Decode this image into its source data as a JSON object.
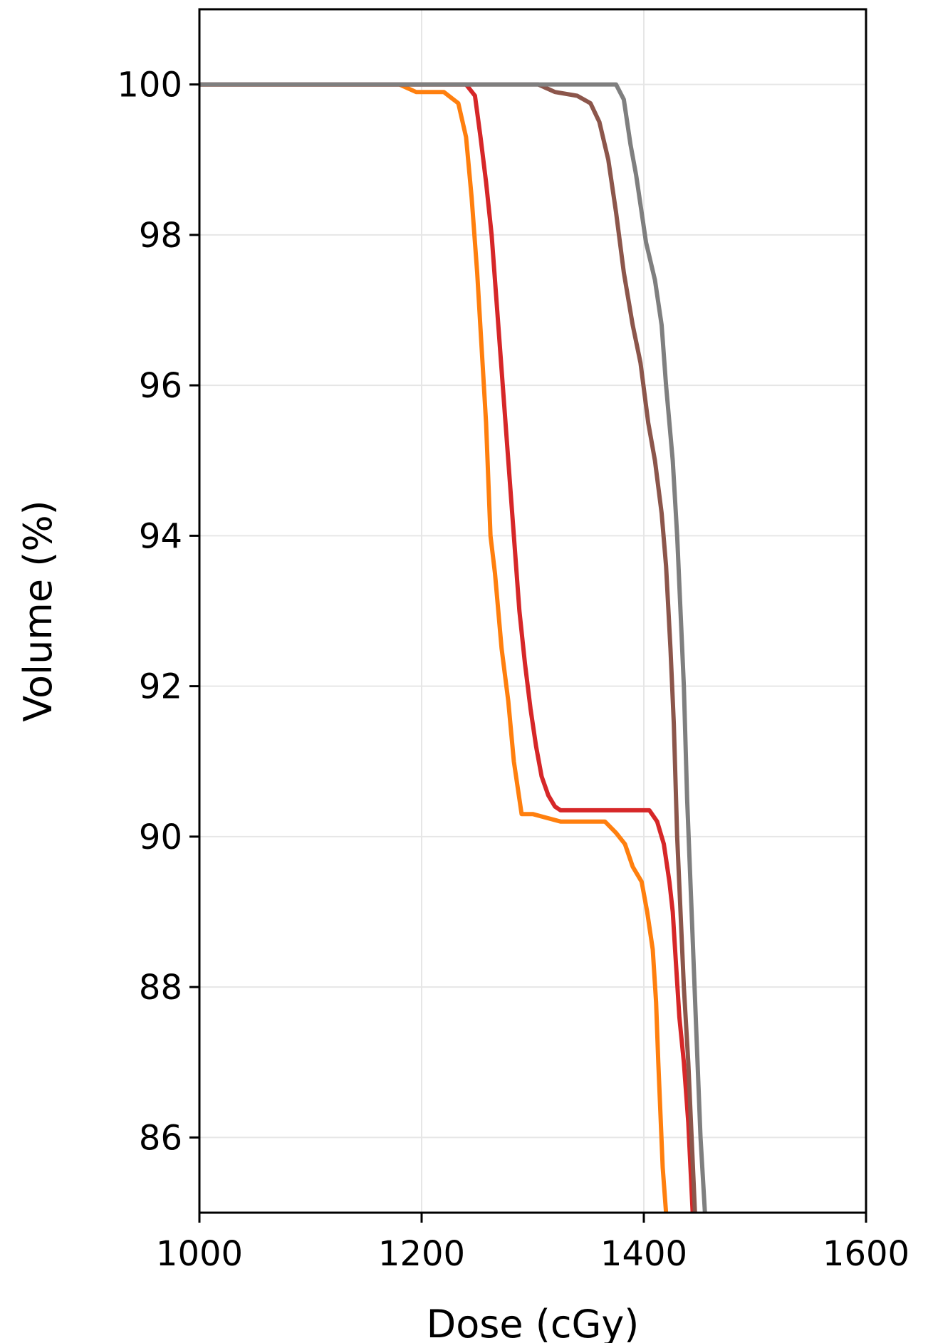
{
  "chart_data": {
    "type": "line",
    "title": "",
    "xlabel": "Dose (cGy)",
    "ylabel": "Volume (%)",
    "xlim": [
      1000,
      1600
    ],
    "ylim": [
      85,
      101
    ],
    "xticks": [
      1000,
      1200,
      1400,
      1600
    ],
    "xtick_labels": [
      "1000",
      "1200",
      "1400",
      "1600"
    ],
    "yticks": [
      86,
      88,
      90,
      92,
      94,
      96,
      98,
      100
    ],
    "ytick_labels": [
      "86",
      "88",
      "90",
      "92",
      "94",
      "96",
      "98",
      "100"
    ],
    "grid": true,
    "legend": "none",
    "series": [
      {
        "color": "#ff7f0e",
        "x": [
          1000,
          1180,
          1195,
          1220,
          1233,
          1240,
          1245,
          1250,
          1258,
          1262,
          1266,
          1272,
          1278,
          1283,
          1290,
          1296,
          1300,
          1325,
          1335,
          1365,
          1375,
          1383,
          1390,
          1398,
          1403,
          1408,
          1411,
          1413,
          1415,
          1417,
          1420
        ],
        "y": [
          100,
          100,
          99.9,
          99.9,
          99.75,
          99.3,
          98.5,
          97.5,
          95.5,
          94.0,
          93.5,
          92.5,
          91.8,
          91.0,
          90.3,
          90.3,
          90.3,
          90.2,
          90.2,
          90.2,
          90.05,
          89.9,
          89.6,
          89.4,
          89.0,
          88.5,
          87.8,
          87.0,
          86.3,
          85.6,
          85.0
        ]
      },
      {
        "color": "#d62728",
        "x": [
          1000,
          1240,
          1248,
          1253,
          1258,
          1263,
          1268,
          1273,
          1278,
          1283,
          1288,
          1293,
          1298,
          1303,
          1308,
          1314,
          1320,
          1325,
          1405,
          1412,
          1418,
          1423,
          1426,
          1429,
          1432,
          1436,
          1440,
          1442,
          1444
        ],
        "y": [
          100,
          100,
          99.85,
          99.3,
          98.7,
          98.0,
          97.0,
          96.0,
          95.0,
          94.0,
          93.0,
          92.3,
          91.7,
          91.2,
          90.8,
          90.55,
          90.4,
          90.35,
          90.35,
          90.2,
          89.9,
          89.4,
          89.0,
          88.3,
          87.6,
          87.0,
          86.2,
          85.6,
          85.0
        ]
      },
      {
        "color": "#8c564b",
        "x": [
          1000,
          1305,
          1320,
          1340,
          1352,
          1360,
          1368,
          1375,
          1382,
          1390,
          1397,
          1404,
          1410,
          1416,
          1420,
          1424,
          1427,
          1430,
          1433,
          1436,
          1440,
          1443,
          1446
        ],
        "y": [
          100,
          100,
          99.9,
          99.85,
          99.75,
          99.5,
          99.0,
          98.3,
          97.5,
          96.8,
          96.3,
          95.5,
          95.0,
          94.3,
          93.6,
          92.5,
          91.5,
          90.0,
          89.0,
          88.0,
          87.0,
          86.0,
          85.0
        ]
      },
      {
        "color": "#7f7f7f",
        "x": [
          1000,
          1375,
          1382,
          1388,
          1393,
          1398,
          1402,
          1410,
          1416,
          1420,
          1423,
          1426,
          1430,
          1433,
          1436,
          1439,
          1443,
          1447,
          1451,
          1455
        ],
        "y": [
          100,
          100,
          99.8,
          99.2,
          98.8,
          98.3,
          97.9,
          97.4,
          96.8,
          96.0,
          95.5,
          95.0,
          94.0,
          93.0,
          92.0,
          90.5,
          89.0,
          87.5,
          86.0,
          85.0
        ]
      }
    ]
  }
}
